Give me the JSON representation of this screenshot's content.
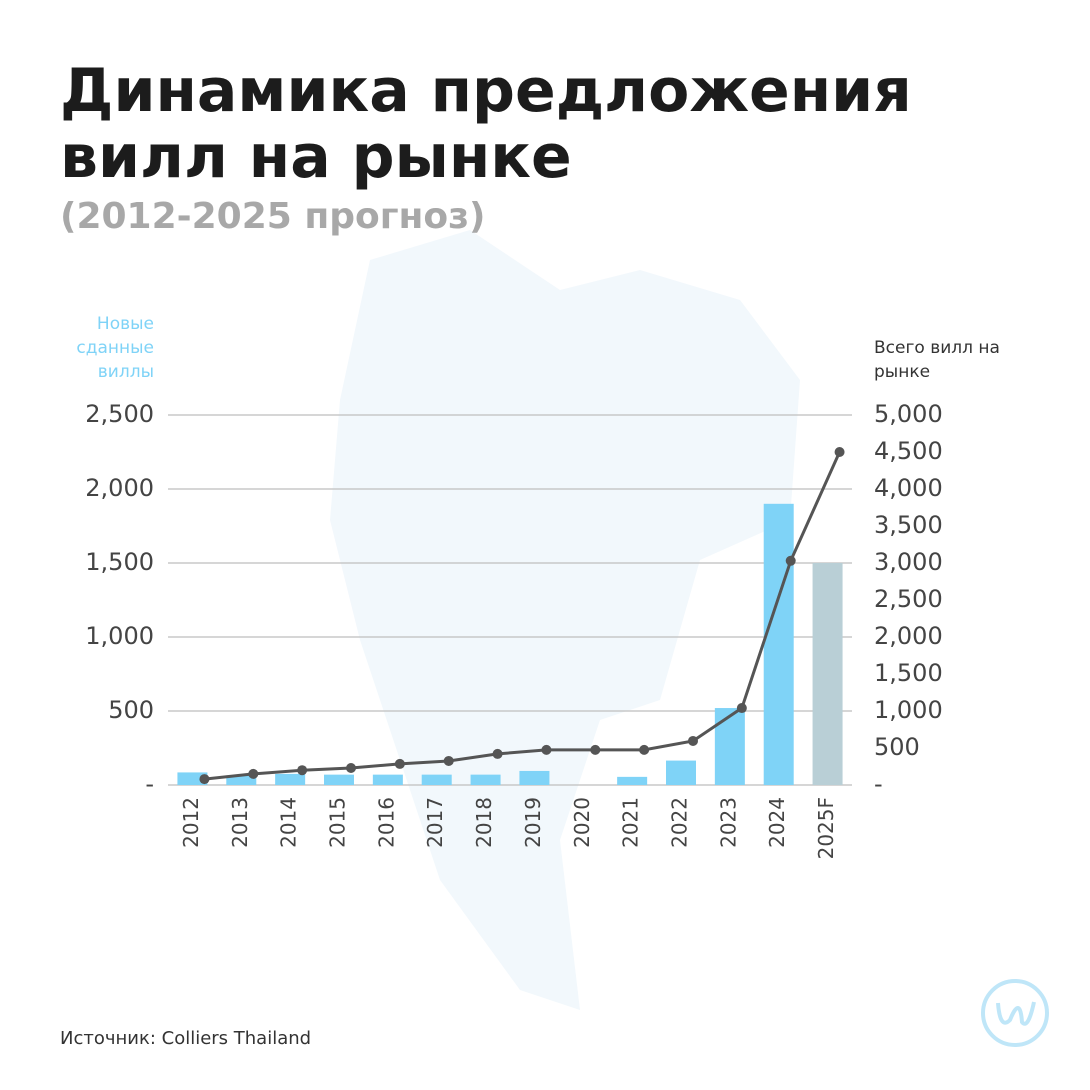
{
  "chart_data": {
    "type": "bar-line",
    "title": "Динамика предложения вилл на рынке",
    "subtitle": "(2012-2025 прогноз)",
    "source": "Источник: Colliers Thailand",
    "y_label": "Новые сданные виллы",
    "y2_label": "Всего вилл на рынке",
    "categories": [
      "2012",
      "2013",
      "2014",
      "2015",
      "2016",
      "2017",
      "2018",
      "2019",
      "2020",
      "2021",
      "2022",
      "2023",
      "2024",
      "2025F"
    ],
    "series": [
      {
        "name": "Новые сданные виллы",
        "type": "bar",
        "color": "#7fd3f7",
        "forecast_color": "#b9cfd6",
        "values": [
          85,
          65,
          75,
          70,
          70,
          70,
          70,
          95,
          0,
          55,
          165,
          520,
          1900,
          1500
        ]
      },
      {
        "name": "Всего вилл на рынке",
        "type": "line",
        "axis": "y2",
        "color": "#555555",
        "values": [
          80,
          150,
          200,
          230,
          285,
          325,
          420,
          475,
          475,
          475,
          595,
          1040,
          3030,
          4500
        ]
      }
    ],
    "ylim": [
      0,
      2500
    ],
    "yticks": [
      {
        "value": 0,
        "label": "-"
      },
      500,
      {
        "value": 1000,
        "label": "1,000"
      },
      {
        "value": 1500,
        "label": "1,500"
      },
      {
        "value": 2000,
        "label": "2,000"
      },
      {
        "value": 2500,
        "label": "2,500"
      }
    ],
    "y2lim": [
      0,
      5000
    ],
    "y2ticks": [
      {
        "value": 0,
        "label": "-"
      },
      500,
      {
        "value": 1000,
        "label": "1,000"
      },
      {
        "value": 1500,
        "label": "1,500"
      },
      {
        "value": 2000,
        "label": "2,000"
      },
      {
        "value": 2500,
        "label": "2,500"
      },
      {
        "value": 3000,
        "label": "3,000"
      },
      {
        "value": 3500,
        "label": "3,500"
      },
      {
        "value": 4000,
        "label": "4,000"
      },
      {
        "value": 4500,
        "label": "4,500"
      },
      {
        "value": 5000,
        "label": "5,000"
      }
    ],
    "grid": true
  }
}
